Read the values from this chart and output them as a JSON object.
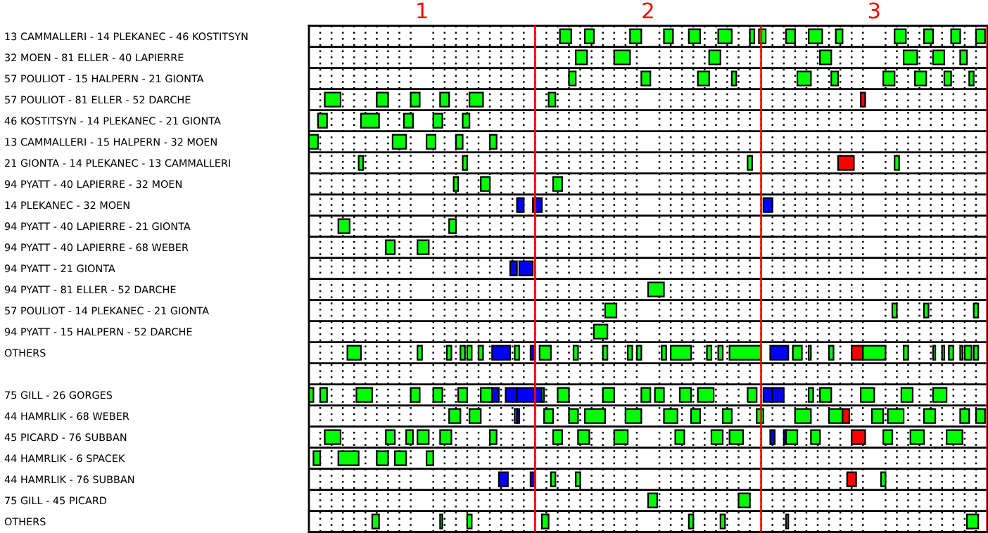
{
  "chart_data": {
    "type": "bar",
    "orientation": "horizontal",
    "categories": [
      "13 CAMMALLERI - 14 PLEKANEC - 46 KOSTITSYN",
      "32 MOEN - 81 ELLER - 40 LAPIERRE",
      "57 POULIOT - 15 HALPERN - 21 GIONTA",
      "57 POULIOT - 81 ELLER - 52 DARCHE",
      "46 KOSTITSYN - 14 PLEKANEC - 21 GIONTA",
      "13 CAMMALLERI - 15 HALPERN - 32 MOEN",
      "21 GIONTA - 14 PLEKANEC - 13 CAMMALLERI",
      "94 PYATT - 40 LAPIERRE - 32 MOEN",
      "14 PLEKANEC - 32 MOEN",
      "94 PYATT - 40 LAPIERRE - 21 GIONTA",
      "94 PYATT - 40 LAPIERRE - 68 WEBER",
      "94 PYATT - 21 GIONTA",
      "94 PYATT - 81 ELLER - 52 DARCHE",
      "57 POULIOT - 14 PLEKANEC - 21 GIONTA",
      "94 PYATT - 15 HALPERN - 52 DARCHE",
      "OTHERS",
      null,
      "75 GILL - 26 GORGES",
      "44 HAMRLIK - 68 WEBER",
      "45 PICARD - 76 SUBBAN",
      "44 HAMRLIK - 6 SPACEK",
      "44 HAMRLIK - 76 SUBBAN",
      "75 GILL - 45 PICARD",
      "OTHERS"
    ],
    "xlim": [
      0.5,
      3.5
    ],
    "xticks": [
      1,
      2,
      3
    ],
    "grid": true,
    "ref_lines": [
      {
        "axis": "x",
        "value": 1.5,
        "color": "#ff0000"
      },
      {
        "axis": "x",
        "value": 2.5,
        "color": "#ff0000"
      },
      {
        "axis": "x",
        "value": 3.5,
        "color": "#ff0000"
      }
    ],
    "series": [
      {
        "base": [
          1.61,
          1.68,
          1.65,
          0.57,
          0.54,
          0.5,
          0.72,
          1.14,
          1.42,
          0.63,
          0.84,
          1.39,
          2.0,
          1.81,
          1.76,
          0.67,
          null,
          0.5,
          1.12,
          0.57,
          0.52,
          1.34,
          2.0,
          0.78
        ],
        "values": [
          0.05,
          0.05,
          0.03,
          0.07,
          0.04,
          0.04,
          0.02,
          0.02,
          0.03,
          0.05,
          0.04,
          0.03,
          0.07,
          0.05,
          0.06,
          0.06,
          null,
          0.02,
          0.05,
          0.07,
          0.03,
          0.04,
          0.04,
          0.03
        ],
        "colors": [
          "#00ff00",
          "#00ff00",
          "#00ff00",
          "#00ff00",
          "#00ff00",
          "#00ff00",
          "#00ff00",
          "#00ff00",
          "#0000ff",
          "#00ff00",
          "#00ff00",
          "#0000ff",
          "#00ff00",
          "#00ff00",
          "#00ff00",
          "#00ff00",
          null,
          "#00ff00",
          "#00ff00",
          "#00ff00",
          "#00ff00",
          "#0000ff",
          "#00ff00",
          "#00ff00"
        ]
      },
      {
        "base": [
          1.72,
          1.85,
          1.97,
          0.8,
          0.73,
          0.87,
          1.18,
          1.26,
          1.49,
          1.12,
          0.98,
          1.43,
          null,
          3.08,
          null,
          0.98,
          null,
          0.55,
          1.21,
          0.84,
          0.63,
          1.48,
          2.4,
          1.08
        ],
        "values": [
          0.04,
          0.07,
          0.04,
          0.05,
          0.08,
          0.06,
          0.02,
          0.04,
          0.04,
          0.03,
          0.05,
          0.06,
          null,
          0.02,
          null,
          0.02,
          null,
          0.03,
          0.05,
          0.04,
          0.09,
          0.02,
          0.05,
          0.01
        ],
        "colors": [
          "#00ff00",
          "#00ff00",
          "#00ff00",
          "#00ff00",
          "#00ff00",
          "#00ff00",
          "#00ff00",
          "#00ff00",
          "#0000ff",
          "#00ff00",
          "#00ff00",
          "#0000ff",
          null,
          "#00ff00",
          null,
          "#00ff00",
          null,
          "#00ff00",
          "#00ff00",
          "#00ff00",
          "#00ff00",
          "#0000ff",
          "#00ff00",
          "#00ff00"
        ]
      },
      {
        "base": [
          1.92,
          2.27,
          2.22,
          0.95,
          0.92,
          1.02,
          2.44,
          1.58,
          2.51,
          null,
          null,
          null,
          null,
          3.22,
          null,
          1.11,
          null,
          0.71,
          1.41,
          0.93,
          0.8,
          1.57,
          null,
          1.2
        ],
        "values": [
          0.05,
          0.05,
          0.05,
          0.04,
          0.04,
          0.04,
          0.02,
          0.04,
          0.04,
          null,
          null,
          null,
          null,
          0.02,
          null,
          0.02,
          null,
          0.07,
          0.01,
          0.03,
          0.05,
          0.02,
          null,
          0.02
        ],
        "colors": [
          "#00ff00",
          "#00ff00",
          "#00ff00",
          "#00ff00",
          "#00ff00",
          "#00ff00",
          "#00ff00",
          "#00ff00",
          "#0000ff",
          null,
          null,
          null,
          null,
          "#00ff00",
          null,
          "#00ff00",
          null,
          "#00ff00",
          "#00ff00",
          "#00ff00",
          "#00ff00",
          "#00ff00",
          null,
          "#00ff00"
        ]
      },
      {
        "base": [
          2.07,
          2.76,
          2.37,
          1.08,
          1.05,
          1.15,
          2.84,
          null,
          null,
          null,
          null,
          null,
          null,
          3.44,
          null,
          1.17,
          null,
          0.95,
          1.42,
          0.98,
          0.88,
          1.68,
          null,
          1.53
        ],
        "values": [
          0.04,
          0.05,
          0.02,
          0.04,
          0.04,
          0.03,
          0.07,
          null,
          null,
          null,
          null,
          null,
          null,
          0.02,
          null,
          0.02,
          null,
          0.04,
          0.01,
          0.05,
          0.05,
          0.02,
          null,
          0.03
        ],
        "colors": [
          "#00ff00",
          "#00ff00",
          "#00ff00",
          "#00ff00",
          "#00ff00",
          "#00ff00",
          "#ff0000",
          null,
          null,
          null,
          null,
          null,
          null,
          "#00ff00",
          null,
          "#00ff00",
          null,
          "#00ff00",
          "#0000ff",
          "#00ff00",
          "#00ff00",
          "#00ff00",
          null,
          "#00ff00"
        ]
      },
      {
        "base": [
          2.18,
          3.13,
          2.66,
          1.21,
          1.18,
          1.3,
          3.09,
          null,
          null,
          null,
          null,
          null,
          null,
          null,
          null,
          1.2,
          null,
          1.05,
          1.54,
          1.08,
          1.02,
          2.88,
          null,
          2.18
        ],
        "values": [
          0.05,
          0.06,
          0.06,
          0.06,
          0.03,
          0.03,
          0.02,
          null,
          null,
          null,
          null,
          null,
          null,
          null,
          null,
          0.02,
          null,
          0.04,
          0.04,
          0.05,
          0.03,
          0.04,
          null,
          0.02
        ],
        "colors": [
          "#00ff00",
          "#00ff00",
          "#00ff00",
          "#00ff00",
          "#00ff00",
          "#00ff00",
          "#00ff00",
          null,
          null,
          null,
          null,
          null,
          null,
          null,
          null,
          "#00ff00",
          null,
          "#00ff00",
          "#00ff00",
          "#00ff00",
          "#00ff00",
          "#ff0000",
          null,
          "#00ff00"
        ]
      },
      {
        "color": "#00ff00",
        "base": [
          2.31,
          3.26,
          2.81,
          1.56,
          null,
          null,
          null,
          null,
          null,
          null,
          null,
          null,
          null,
          null,
          null,
          1.25,
          null,
          1.16,
          1.65,
          1.3,
          null,
          3.03,
          null,
          2.32
        ],
        "values": [
          0.06,
          0.05,
          0.03,
          0.03,
          null,
          null,
          null,
          null,
          null,
          null,
          null,
          null,
          null,
          null,
          null,
          0.02,
          null,
          0.04,
          0.04,
          0.03,
          null,
          0.02,
          null,
          0.02
        ]
      },
      {
        "base": [
          2.45,
          3.38,
          3.04,
          2.94,
          null,
          null,
          null,
          null,
          null,
          null,
          null,
          null,
          null,
          null,
          null,
          1.31,
          null,
          1.26,
          1.72,
          1.58,
          null,
          null,
          null,
          2.61
        ],
        "values": [
          0.02,
          0.03,
          0.05,
          0.02,
          null,
          null,
          null,
          null,
          null,
          null,
          null,
          null,
          null,
          null,
          null,
          0.08,
          null,
          0.05,
          0.09,
          0.04,
          null,
          null,
          null,
          0.01
        ],
        "colors": [
          "#00ff00",
          "#00ff00",
          "#00ff00",
          "#ff0000",
          null,
          null,
          null,
          null,
          null,
          null,
          null,
          null,
          null,
          null,
          null,
          "#0000ff",
          null,
          "#00ff00",
          "#00ff00",
          "#00ff00",
          null,
          null,
          null,
          "#00ff00"
        ]
      },
      {
        "base": [
          2.49,
          null,
          3.18,
          null,
          null,
          null,
          null,
          null,
          null,
          null,
          null,
          null,
          null,
          null,
          null,
          1.41,
          null,
          1.31,
          1.9,
          1.69,
          null,
          null,
          null,
          3.41
        ],
        "values": [
          0.03,
          null,
          0.05,
          null,
          null,
          null,
          null,
          null,
          null,
          null,
          null,
          null,
          null,
          null,
          null,
          0.02,
          null,
          0.03,
          0.07,
          0.05,
          null,
          null,
          null,
          0.05
        ],
        "colors": [
          "#00ff00",
          null,
          "#00ff00",
          null,
          null,
          null,
          null,
          null,
          null,
          null,
          null,
          null,
          null,
          null,
          null,
          "#00ff00",
          null,
          "#0000ff",
          "#00ff00",
          "#00ff00",
          null,
          null,
          null,
          "#00ff00"
        ]
      },
      {
        "base": [
          2.61,
          null,
          3.31,
          null,
          null,
          null,
          null,
          null,
          null,
          null,
          null,
          null,
          null,
          null,
          null,
          1.48,
          null,
          1.37,
          2.07,
          1.85,
          null,
          null,
          null,
          null
        ],
        "values": [
          0.04,
          null,
          0.03,
          null,
          null,
          null,
          null,
          null,
          null,
          null,
          null,
          null,
          null,
          null,
          null,
          0.02,
          null,
          0.05,
          0.06,
          0.06,
          null,
          null,
          null,
          null
        ],
        "colors": [
          "#00ff00",
          null,
          "#00ff00",
          null,
          null,
          null,
          null,
          null,
          null,
          null,
          null,
          null,
          null,
          null,
          null,
          "#0000ff",
          null,
          "#0000ff",
          "#00ff00",
          "#00ff00",
          null,
          null,
          null,
          null
        ]
      },
      {
        "base": [
          2.71,
          null,
          3.42,
          null,
          null,
          null,
          null,
          null,
          null,
          null,
          null,
          null,
          null,
          null,
          null,
          1.52,
          null,
          1.42,
          2.19,
          2.12,
          null,
          null,
          null,
          null
        ],
        "values": [
          0.06,
          null,
          0.02,
          null,
          null,
          null,
          null,
          null,
          null,
          null,
          null,
          null,
          null,
          null,
          null,
          0.05,
          null,
          0.11,
          0.04,
          0.04,
          null,
          null,
          null,
          null
        ],
        "colors": [
          "#00ff00",
          null,
          "#00ff00",
          null,
          null,
          null,
          null,
          null,
          null,
          null,
          null,
          null,
          null,
          null,
          null,
          "#00ff00",
          null,
          "#0000ff",
          "#00ff00",
          "#00ff00",
          null,
          null,
          null,
          null
        ]
      },
      {
        "color": "#00ff00",
        "base": [
          2.83,
          null,
          null,
          null,
          null,
          null,
          null,
          null,
          null,
          null,
          null,
          null,
          null,
          null,
          null,
          1.67,
          null,
          1.53,
          2.33,
          2.28,
          null,
          null,
          null,
          null
        ],
        "values": [
          0.03,
          null,
          null,
          null,
          null,
          null,
          null,
          null,
          null,
          null,
          null,
          null,
          null,
          null,
          null,
          0.02,
          null,
          0.01,
          0.04,
          0.05,
          null,
          null,
          null,
          null
        ]
      },
      {
        "color": "#00ff00",
        "base": [
          3.09,
          null,
          null,
          null,
          null,
          null,
          null,
          null,
          null,
          null,
          null,
          null,
          null,
          null,
          null,
          1.8,
          null,
          1.6,
          2.48,
          2.36,
          null,
          null,
          null,
          null
        ],
        "values": [
          0.05,
          null,
          null,
          null,
          null,
          null,
          null,
          null,
          null,
          null,
          null,
          null,
          null,
          null,
          null,
          0.02,
          null,
          0.05,
          0.03,
          0.06,
          null,
          null,
          null,
          null
        ]
      },
      {
        "base": [
          3.22,
          null,
          null,
          null,
          null,
          null,
          null,
          null,
          null,
          null,
          null,
          null,
          null,
          null,
          null,
          1.91,
          null,
          1.8,
          2.65,
          2.54,
          null,
          null,
          null,
          null
        ],
        "values": [
          0.04,
          null,
          null,
          null,
          null,
          null,
          null,
          null,
          null,
          null,
          null,
          null,
          null,
          null,
          null,
          0.02,
          null,
          0.05,
          0.07,
          0.02,
          null,
          null,
          null,
          null
        ],
        "colors": [
          "#00ff00",
          null,
          null,
          null,
          null,
          null,
          null,
          null,
          null,
          null,
          null,
          null,
          null,
          null,
          null,
          "#00ff00",
          null,
          "#00ff00",
          "#00ff00",
          "#0000ff",
          null,
          null,
          null,
          null
        ]
      },
      {
        "base": [
          3.34,
          null,
          null,
          null,
          null,
          null,
          null,
          null,
          null,
          null,
          null,
          null,
          null,
          null,
          null,
          1.95,
          null,
          1.97,
          2.8,
          2.6,
          null,
          null,
          null,
          null
        ],
        "values": [
          0.04,
          null,
          null,
          null,
          null,
          null,
          null,
          null,
          null,
          null,
          null,
          null,
          null,
          null,
          null,
          0.02,
          null,
          0.04,
          0.06,
          0.01,
          null,
          null,
          null,
          null
        ],
        "colors": [
          "#00ff00",
          null,
          null,
          null,
          null,
          null,
          null,
          null,
          null,
          null,
          null,
          null,
          null,
          null,
          null,
          "#00ff00",
          null,
          "#00ff00",
          "#00ff00",
          "#0000ff",
          null,
          null,
          null,
          null
        ]
      },
      {
        "base": [
          3.45,
          null,
          null,
          null,
          null,
          null,
          null,
          null,
          null,
          null,
          null,
          null,
          null,
          null,
          null,
          2.06,
          null,
          2.03,
          2.86,
          2.61,
          null,
          null,
          null,
          null
        ],
        "values": [
          0.04,
          null,
          null,
          null,
          null,
          null,
          null,
          null,
          null,
          null,
          null,
          null,
          null,
          null,
          null,
          0.02,
          null,
          0.04,
          0.03,
          0.05,
          null,
          null,
          null,
          null
        ],
        "colors": [
          "#00ff00",
          null,
          null,
          null,
          null,
          null,
          null,
          null,
          null,
          null,
          null,
          null,
          null,
          null,
          null,
          "#00ff00",
          null,
          "#00ff00",
          "#ff0000",
          "#00ff00",
          null,
          null,
          null,
          null
        ]
      },
      {
        "color": "#00ff00",
        "base": [
          null,
          null,
          null,
          null,
          null,
          null,
          null,
          null,
          null,
          null,
          null,
          null,
          null,
          null,
          null,
          2.1,
          null,
          2.14,
          2.99,
          2.72,
          null,
          null,
          null,
          null
        ],
        "values": [
          null,
          null,
          null,
          null,
          null,
          null,
          null,
          null,
          null,
          null,
          null,
          null,
          null,
          null,
          null,
          0.09,
          null,
          0.05,
          0.05,
          0.04,
          null,
          null,
          null,
          null
        ]
      },
      {
        "base": [
          null,
          null,
          null,
          null,
          null,
          null,
          null,
          null,
          null,
          null,
          null,
          null,
          null,
          null,
          null,
          2.26,
          null,
          2.22,
          3.06,
          2.9,
          null,
          null,
          null,
          null
        ],
        "values": [
          null,
          null,
          null,
          null,
          null,
          null,
          null,
          null,
          null,
          null,
          null,
          null,
          null,
          null,
          null,
          0.02,
          null,
          0.07,
          0.07,
          0.06,
          null,
          null,
          null,
          null
        ],
        "colors": [
          null,
          null,
          null,
          null,
          null,
          null,
          null,
          null,
          null,
          null,
          null,
          null,
          null,
          null,
          null,
          "#00ff00",
          null,
          "#00ff00",
          "#00ff00",
          "#ff0000",
          null,
          null,
          null,
          null
        ]
      },
      {
        "color": "#00ff00",
        "base": [
          null,
          null,
          null,
          null,
          null,
          null,
          null,
          null,
          null,
          null,
          null,
          null,
          null,
          null,
          null,
          2.31,
          null,
          2.44,
          3.22,
          3.04,
          null,
          null,
          null,
          null
        ],
        "values": [
          null,
          null,
          null,
          null,
          null,
          null,
          null,
          null,
          null,
          null,
          null,
          null,
          null,
          null,
          null,
          0.02,
          null,
          0.04,
          0.05,
          0.04,
          null,
          null,
          null,
          null
        ]
      },
      {
        "base": [
          null,
          null,
          null,
          null,
          null,
          null,
          null,
          null,
          null,
          null,
          null,
          null,
          null,
          null,
          null,
          2.36,
          null,
          2.51,
          3.38,
          3.16,
          null,
          null,
          null,
          null
        ],
        "values": [
          null,
          null,
          null,
          null,
          null,
          null,
          null,
          null,
          null,
          null,
          null,
          null,
          null,
          null,
          null,
          0.14,
          null,
          0.04,
          0.04,
          0.06,
          null,
          null,
          null,
          null
        ],
        "colors": [
          null,
          null,
          null,
          null,
          null,
          null,
          null,
          null,
          null,
          null,
          null,
          null,
          null,
          null,
          null,
          "#00ff00",
          null,
          "#0000ff",
          "#00ff00",
          "#00ff00",
          null,
          null,
          null,
          null
        ]
      },
      {
        "base": [
          null,
          null,
          null,
          null,
          null,
          null,
          null,
          null,
          null,
          null,
          null,
          null,
          null,
          null,
          null,
          2.54,
          null,
          2.55,
          3.45,
          3.32,
          null,
          null,
          null,
          null
        ],
        "values": [
          null,
          null,
          null,
          null,
          null,
          null,
          null,
          null,
          null,
          null,
          null,
          null,
          null,
          null,
          null,
          0.08,
          null,
          0.05,
          0.04,
          0.07,
          null,
          null,
          null,
          null
        ],
        "colors": [
          null,
          null,
          null,
          null,
          null,
          null,
          null,
          null,
          null,
          null,
          null,
          null,
          null,
          null,
          null,
          "#0000ff",
          null,
          "#0000ff",
          "#00ff00",
          "#00ff00",
          null,
          null,
          null,
          null
        ]
      },
      {
        "color": "#00ff00",
        "base": [
          null,
          null,
          null,
          null,
          null,
          null,
          null,
          null,
          null,
          null,
          null,
          null,
          null,
          null,
          null,
          2.64,
          null,
          2.71,
          null,
          null,
          null,
          null,
          null,
          null
        ],
        "values": [
          null,
          null,
          null,
          null,
          null,
          null,
          null,
          null,
          null,
          null,
          null,
          null,
          null,
          null,
          null,
          0.04,
          null,
          0.02,
          null,
          null,
          null,
          null,
          null,
          null
        ]
      },
      {
        "color": "#00ff00",
        "base": [
          null,
          null,
          null,
          null,
          null,
          null,
          null,
          null,
          null,
          null,
          null,
          null,
          null,
          null,
          null,
          2.71,
          null,
          2.76,
          null,
          null,
          null,
          null,
          null,
          null
        ],
        "values": [
          null,
          null,
          null,
          null,
          null,
          null,
          null,
          null,
          null,
          null,
          null,
          null,
          null,
          null,
          null,
          0.01,
          null,
          0.05,
          null,
          null,
          null,
          null,
          null,
          null
        ]
      },
      {
        "color": "#00ff00",
        "base": [
          null,
          null,
          null,
          null,
          null,
          null,
          null,
          null,
          null,
          null,
          null,
          null,
          null,
          null,
          null,
          2.8,
          null,
          2.94,
          null,
          null,
          null,
          null,
          null,
          null
        ],
        "values": [
          null,
          null,
          null,
          null,
          null,
          null,
          null,
          null,
          null,
          null,
          null,
          null,
          null,
          null,
          null,
          0.02,
          null,
          0.06,
          null,
          null,
          null,
          null,
          null,
          null
        ]
      },
      {
        "base": [
          null,
          null,
          null,
          null,
          null,
          null,
          null,
          null,
          null,
          null,
          null,
          null,
          null,
          null,
          null,
          2.9,
          null,
          3.12,
          null,
          null,
          null,
          null,
          null,
          null
        ],
        "values": [
          null,
          null,
          null,
          null,
          null,
          null,
          null,
          null,
          null,
          null,
          null,
          null,
          null,
          null,
          null,
          0.05,
          null,
          0.05,
          null,
          null,
          null,
          null,
          null,
          null
        ],
        "colors": [
          null,
          null,
          null,
          null,
          null,
          null,
          null,
          null,
          null,
          null,
          null,
          null,
          null,
          null,
          null,
          "#ff0000",
          null,
          "#00ff00",
          null,
          null,
          null,
          null,
          null,
          null
        ]
      },
      {
        "color": "#00ff00",
        "base": [
          null,
          null,
          null,
          null,
          null,
          null,
          null,
          null,
          null,
          null,
          null,
          null,
          null,
          null,
          null,
          2.95,
          null,
          3.26,
          null,
          null,
          null,
          null,
          null,
          null
        ],
        "values": [
          null,
          null,
          null,
          null,
          null,
          null,
          null,
          null,
          null,
          null,
          null,
          null,
          null,
          null,
          null,
          0.1,
          null,
          0.06,
          null,
          null,
          null,
          null,
          null,
          null
        ]
      },
      {
        "color": "#00ff00",
        "base": [
          null,
          null,
          null,
          null,
          null,
          null,
          null,
          null,
          null,
          null,
          null,
          null,
          null,
          null,
          null,
          3.13,
          null,
          null,
          null,
          null,
          null,
          null,
          null,
          null
        ],
        "values": [
          null,
          null,
          null,
          null,
          null,
          null,
          null,
          null,
          null,
          null,
          null,
          null,
          null,
          null,
          null,
          0.02,
          null,
          null,
          null,
          null,
          null,
          null,
          null,
          null
        ]
      },
      {
        "color": "#00ff00",
        "base": [
          null,
          null,
          null,
          null,
          null,
          null,
          null,
          null,
          null,
          null,
          null,
          null,
          null,
          null,
          null,
          3.26,
          null,
          null,
          null,
          null,
          null,
          null,
          null,
          null
        ],
        "values": [
          null,
          null,
          null,
          null,
          null,
          null,
          null,
          null,
          null,
          null,
          null,
          null,
          null,
          null,
          null,
          0.01,
          null,
          null,
          null,
          null,
          null,
          null,
          null,
          null
        ]
      },
      {
        "color": "#00ff00",
        "base": [
          null,
          null,
          null,
          null,
          null,
          null,
          null,
          null,
          null,
          null,
          null,
          null,
          null,
          null,
          null,
          3.3,
          null,
          null,
          null,
          null,
          null,
          null,
          null,
          null
        ],
        "values": [
          null,
          null,
          null,
          null,
          null,
          null,
          null,
          null,
          null,
          null,
          null,
          null,
          null,
          null,
          null,
          0.01,
          null,
          null,
          null,
          null,
          null,
          null,
          null,
          null
        ]
      },
      {
        "color": "#00ff00",
        "base": [
          null,
          null,
          null,
          null,
          null,
          null,
          null,
          null,
          null,
          null,
          null,
          null,
          null,
          null,
          null,
          3.33,
          null,
          null,
          null,
          null,
          null,
          null,
          null,
          null
        ],
        "values": [
          null,
          null,
          null,
          null,
          null,
          null,
          null,
          null,
          null,
          null,
          null,
          null,
          null,
          null,
          null,
          0.02,
          null,
          null,
          null,
          null,
          null,
          null,
          null,
          null
        ]
      },
      {
        "color": "#00ff00",
        "base": [
          null,
          null,
          null,
          null,
          null,
          null,
          null,
          null,
          null,
          null,
          null,
          null,
          null,
          null,
          null,
          3.38,
          null,
          null,
          null,
          null,
          null,
          null,
          null,
          null
        ],
        "values": [
          null,
          null,
          null,
          null,
          null,
          null,
          null,
          null,
          null,
          null,
          null,
          null,
          null,
          null,
          null,
          0.01,
          null,
          null,
          null,
          null,
          null,
          null,
          null,
          null
        ]
      },
      {
        "color": "#00ff00",
        "base": [
          null,
          null,
          null,
          null,
          null,
          null,
          null,
          null,
          null,
          null,
          null,
          null,
          null,
          null,
          null,
          3.4,
          null,
          null,
          null,
          null,
          null,
          null,
          null,
          null
        ],
        "values": [
          null,
          null,
          null,
          null,
          null,
          null,
          null,
          null,
          null,
          null,
          null,
          null,
          null,
          null,
          null,
          0.03,
          null,
          null,
          null,
          null,
          null,
          null,
          null,
          null
        ]
      },
      {
        "color": "#00ff00",
        "base": [
          null,
          null,
          null,
          null,
          null,
          null,
          null,
          null,
          null,
          null,
          null,
          null,
          null,
          null,
          null,
          3.44,
          null,
          null,
          null,
          null,
          null,
          null,
          null,
          null
        ],
        "values": [
          null,
          null,
          null,
          null,
          null,
          null,
          null,
          null,
          null,
          null,
          null,
          null,
          null,
          null,
          null,
          0.02,
          null,
          null,
          null,
          null,
          null,
          null,
          null,
          null
        ]
      }
    ]
  }
}
